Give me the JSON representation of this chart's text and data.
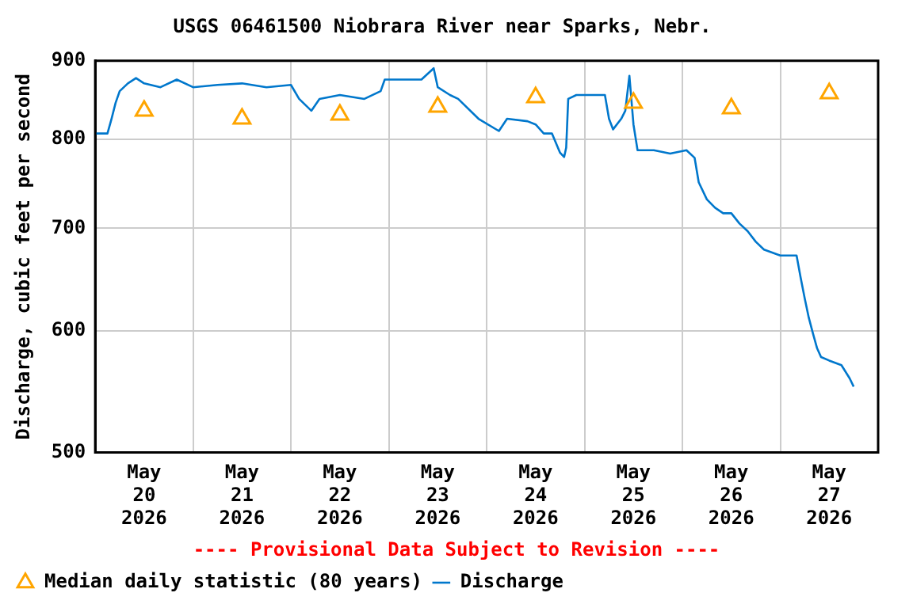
{
  "chart_data": {
    "type": "line",
    "title": "USGS 06461500 Niobrara River near Sparks, Nebr.",
    "ylabel": "Discharge, cubic feet per second",
    "annotations": [
      "---- Provisional Data Subject to Revision ----"
    ],
    "log": "y",
    "grid": true,
    "legend": "bottom left",
    "xlim": [
      "2026-05-20T00:00",
      "2026-05-28T00:00"
    ],
    "xticks": [
      {
        "value": "2026-05-20T00:00",
        "label": null
      },
      {
        "value": "2026-05-20T12:00",
        "label": "May\n20\n2026"
      },
      {
        "value": "2026-05-21T00:00",
        "label": null
      },
      {
        "value": "2026-05-21T12:00",
        "label": "May\n21\n2026"
      },
      {
        "value": "2026-05-22T00:00",
        "label": null
      },
      {
        "value": "2026-05-22T12:00",
        "label": "May\n22\n2026"
      },
      {
        "value": "2026-05-23T00:00",
        "label": null
      },
      {
        "value": "2026-05-23T12:00",
        "label": "May\n23\n2026"
      },
      {
        "value": "2026-05-24T00:00",
        "label": null
      },
      {
        "value": "2026-05-24T12:00",
        "label": "May\n24\n2026"
      },
      {
        "value": "2026-05-25T00:00",
        "label": null
      },
      {
        "value": "2026-05-25T12:00",
        "label": "May\n25\n2026"
      },
      {
        "value": "2026-05-26T00:00",
        "label": null
      },
      {
        "value": "2026-05-26T12:00",
        "label": "May\n26\n2026"
      },
      {
        "value": "2026-05-27T00:00",
        "label": null
      },
      {
        "value": "2026-05-27T12:00",
        "label": "May\n27\n2026"
      },
      {
        "value": "2026-05-28T00:00",
        "label": null
      }
    ],
    "ylim": [
      500,
      900
    ],
    "yticks": [
      500,
      600,
      700,
      800,
      900
    ],
    "series": [
      {
        "name": "Median daily statistic (80 years)",
        "type": "scatter",
        "marker": "triangle",
        "color": "#ffa500",
        "x": [
          "2026-05-20T12:00",
          "2026-05-21T12:00",
          "2026-05-22T12:00",
          "2026-05-23T12:00",
          "2026-05-24T12:00",
          "2026-05-25T12:00",
          "2026-05-26T12:00",
          "2026-05-27T12:00"
        ],
        "values": [
          835,
          825,
          830,
          840,
          852,
          845,
          838,
          857
        ]
      },
      {
        "name": "Discharge",
        "color": "#0077cc",
        "x": [
          "2026-05-20T00:00",
          "2026-05-20T03:00",
          "2026-05-20T04:00",
          "2026-05-20T05:00",
          "2026-05-20T06:00",
          "2026-05-20T08:00",
          "2026-05-20T10:00",
          "2026-05-20T12:00",
          "2026-05-20T16:00",
          "2026-05-20T20:00",
          "2026-05-21T00:00",
          "2026-05-21T06:00",
          "2026-05-21T12:00",
          "2026-05-21T18:00",
          "2026-05-22T00:00",
          "2026-05-22T02:00",
          "2026-05-22T05:00",
          "2026-05-22T07:00",
          "2026-05-22T12:00",
          "2026-05-22T18:00",
          "2026-05-22T22:00",
          "2026-05-22T23:00",
          "2026-05-23T08:00",
          "2026-05-23T11:00",
          "2026-05-23T12:00",
          "2026-05-23T15:00",
          "2026-05-23T17:00",
          "2026-05-23T22:00",
          "2026-05-24T03:00",
          "2026-05-24T05:00",
          "2026-05-24T10:00",
          "2026-05-24T12:00",
          "2026-05-24T14:00",
          "2026-05-24T16:00",
          "2026-05-24T18:00",
          "2026-05-24T19:00",
          "2026-05-24T19:30",
          "2026-05-24T20:00",
          "2026-05-24T22:00",
          "2026-05-25T05:00",
          "2026-05-25T06:00",
          "2026-05-25T07:00",
          "2026-05-25T09:00",
          "2026-05-25T10:00",
          "2026-05-25T11:00",
          "2026-05-25T12:00",
          "2026-05-25T13:00",
          "2026-05-25T17:00",
          "2026-05-25T21:00",
          "2026-05-26T01:00",
          "2026-05-26T03:00",
          "2026-05-26T04:00",
          "2026-05-26T06:00",
          "2026-05-26T08:00",
          "2026-05-26T10:00",
          "2026-05-26T12:00",
          "2026-05-26T14:00",
          "2026-05-26T16:00",
          "2026-05-26T18:00",
          "2026-05-26T20:00",
          "2026-05-27T00:00",
          "2026-05-27T04:00",
          "2026-05-27T05:00",
          "2026-05-27T06:00",
          "2026-05-27T07:00",
          "2026-05-27T08:00",
          "2026-05-27T09:00",
          "2026-05-27T10:00",
          "2026-05-27T12:00",
          "2026-05-27T15:00",
          "2026-05-27T17:00",
          "2026-05-27T18:00"
        ],
        "values": [
          807,
          807,
          825,
          845,
          860,
          870,
          877,
          870,
          865,
          875,
          865,
          868,
          870,
          865,
          868,
          850,
          835,
          850,
          855,
          850,
          860,
          875,
          875,
          890,
          865,
          855,
          850,
          825,
          810,
          825,
          822,
          818,
          807,
          807,
          784,
          779,
          790,
          850,
          855,
          855,
          825,
          812,
          825,
          835,
          880,
          818,
          787,
          787,
          783,
          787,
          778,
          750,
          731,
          722,
          716,
          716,
          705,
          697,
          686,
          678,
          672,
          672,
          650,
          630,
          612,
          598,
          585,
          577,
          574,
          570,
          559,
          552
        ]
      }
    ]
  }
}
